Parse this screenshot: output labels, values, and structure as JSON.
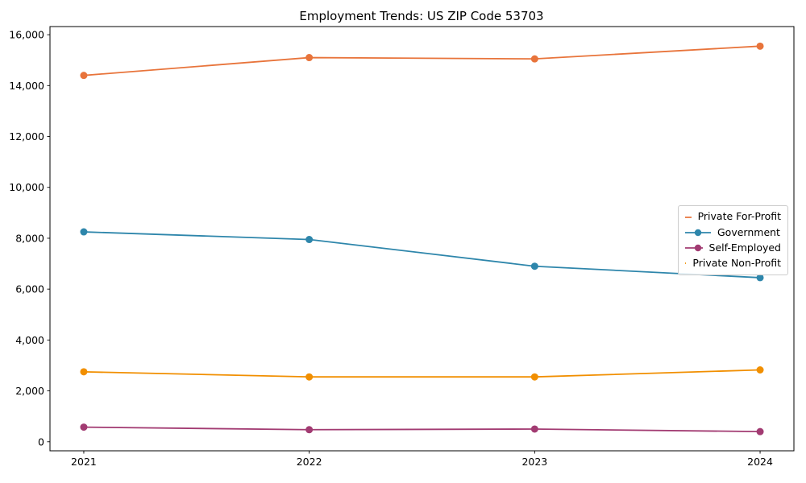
{
  "figure": {
    "background": "#ffffff",
    "axis_color": "#000000",
    "tick_label_color": "#000000",
    "legend_border_color": "#cccccc"
  },
  "chart_data": {
    "type": "line",
    "title": "Employment Trends: US ZIP Code 53703",
    "xlabel": "",
    "ylabel": "",
    "categories": [
      "2021",
      "2022",
      "2023",
      "2024"
    ],
    "series": [
      {
        "name": "Private For-Profit",
        "color": "#E8743B",
        "values": [
          14400,
          15100,
          15050,
          15550
        ]
      },
      {
        "name": "Government",
        "color": "#2E86AB",
        "values": [
          8250,
          7950,
          6900,
          6450
        ]
      },
      {
        "name": "Self-Employed",
        "color": "#A23B72",
        "values": [
          575,
          475,
          500,
          400
        ]
      },
      {
        "name": "Private Non-Profit",
        "color": "#F18F01",
        "values": [
          2750,
          2550,
          2550,
          2825
        ]
      }
    ],
    "yticks": [
      0,
      2000,
      4000,
      6000,
      8000,
      10000,
      12000,
      14000,
      16000
    ],
    "ytick_labels": [
      "0",
      "2,000",
      "4,000",
      "6,000",
      "8,000",
      "10,000",
      "12,000",
      "14,000",
      "16,000"
    ],
    "ylim": [
      -355,
      16320
    ],
    "grid": false,
    "marker": "circle",
    "legend_position": "center-right"
  }
}
